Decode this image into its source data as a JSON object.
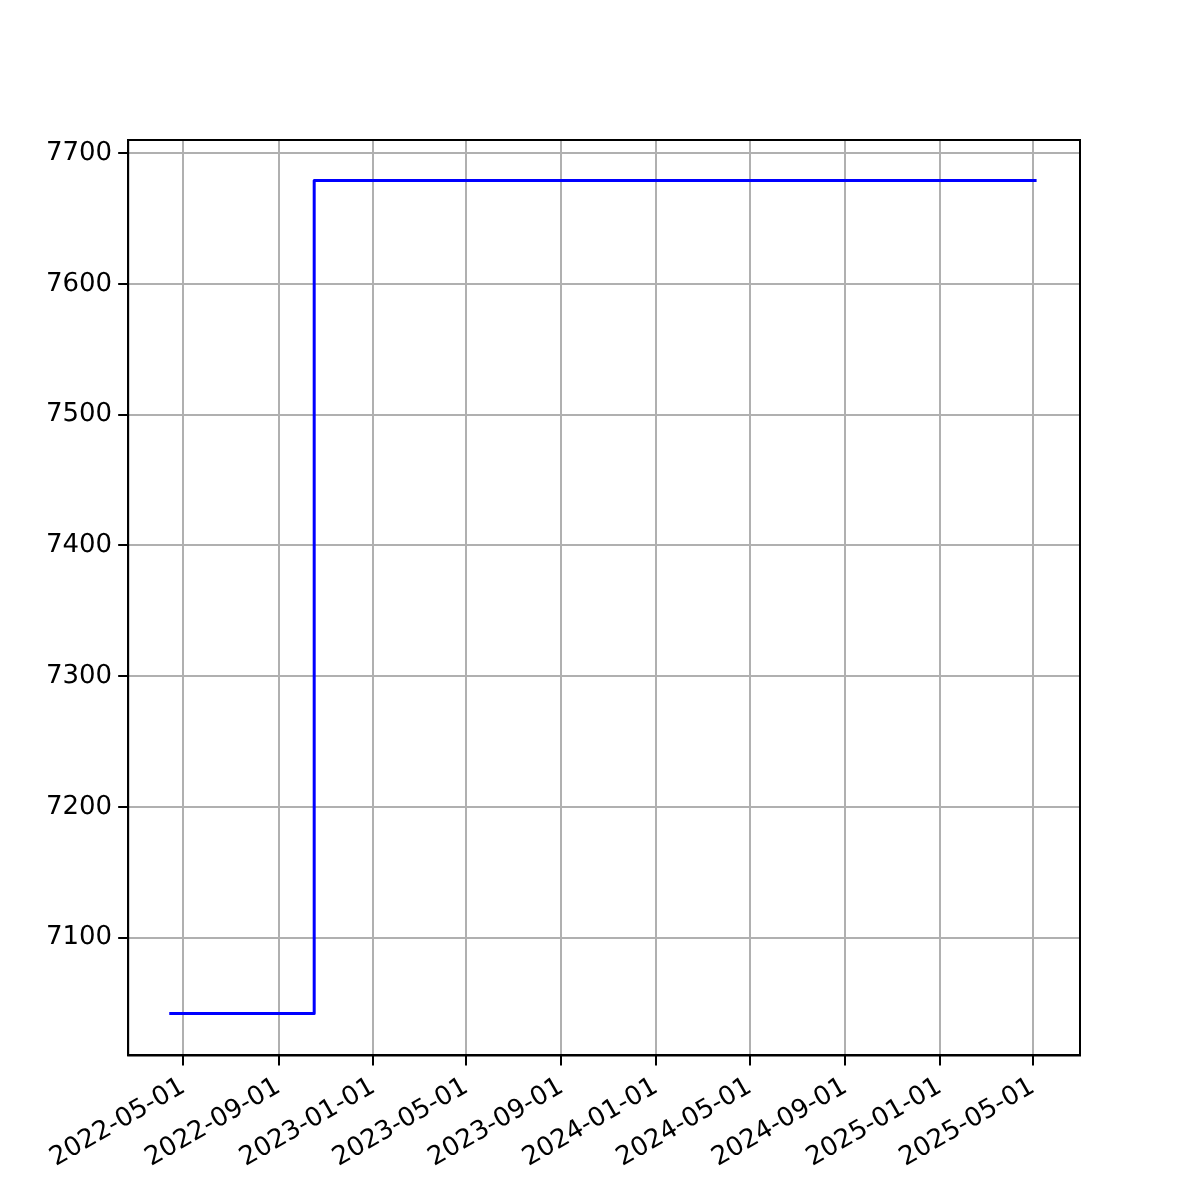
{
  "chart_data": {
    "type": "step",
    "x": [
      "2022-04-13",
      "2022-10-17",
      "2025-05-06"
    ],
    "series": [
      {
        "color": "#0000ff",
        "values": [
          7042,
          7679,
          7679
        ]
      }
    ],
    "xlim": [
      "2022-02-19",
      "2025-07-01"
    ],
    "xticks": [
      "2022-05-01",
      "2022-09-01",
      "2023-01-01",
      "2023-05-01",
      "2023-09-01",
      "2024-01-01",
      "2024-05-01",
      "2024-09-01",
      "2025-01-01",
      "2025-05-01"
    ],
    "ylim": [
      7010,
      7710
    ],
    "yticks": [
      7100,
      7200,
      7300,
      7400,
      7500,
      7600,
      7700
    ],
    "grid": true,
    "legend": false
  }
}
